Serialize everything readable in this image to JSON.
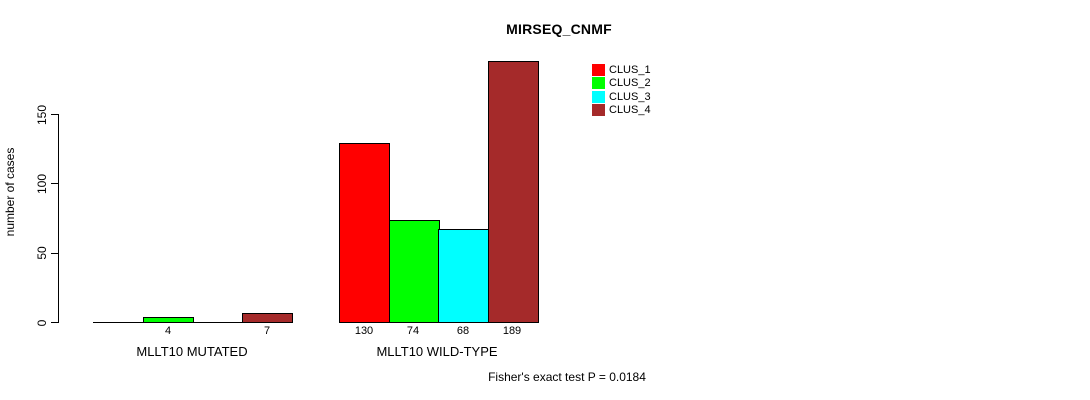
{
  "chart_data": {
    "type": "bar",
    "title": "MIRSEQ_CNMF",
    "xlabel": "",
    "ylabel": "number of cases",
    "categories": [
      "MLLT10 MUTATED",
      "MLLT10 WILD-TYPE"
    ],
    "series": [
      {
        "name": "CLUS_1",
        "color": "#FF0000",
        "values": [
          0,
          130
        ]
      },
      {
        "name": "CLUS_2",
        "color": "#00FF00",
        "values": [
          4,
          74
        ]
      },
      {
        "name": "CLUS_3",
        "color": "#00FFFF",
        "values": [
          0,
          68
        ]
      },
      {
        "name": "CLUS_4",
        "color": "#A52A2A",
        "values": [
          7,
          189
        ]
      }
    ],
    "y_ticks": [
      0,
      50,
      100,
      150
    ],
    "ylim": [
      0,
      195
    ],
    "grid": false,
    "legend_position": "top-right",
    "bar_value_labels": [
      [
        "",
        "4",
        "",
        "7"
      ],
      [
        "130",
        "74",
        "68",
        "189"
      ]
    ],
    "annotation": "Fisher's exact test P = 0.0184"
  },
  "colors": {
    "background": "#FFFFFF",
    "axis": "#000000",
    "text": "#000000"
  }
}
